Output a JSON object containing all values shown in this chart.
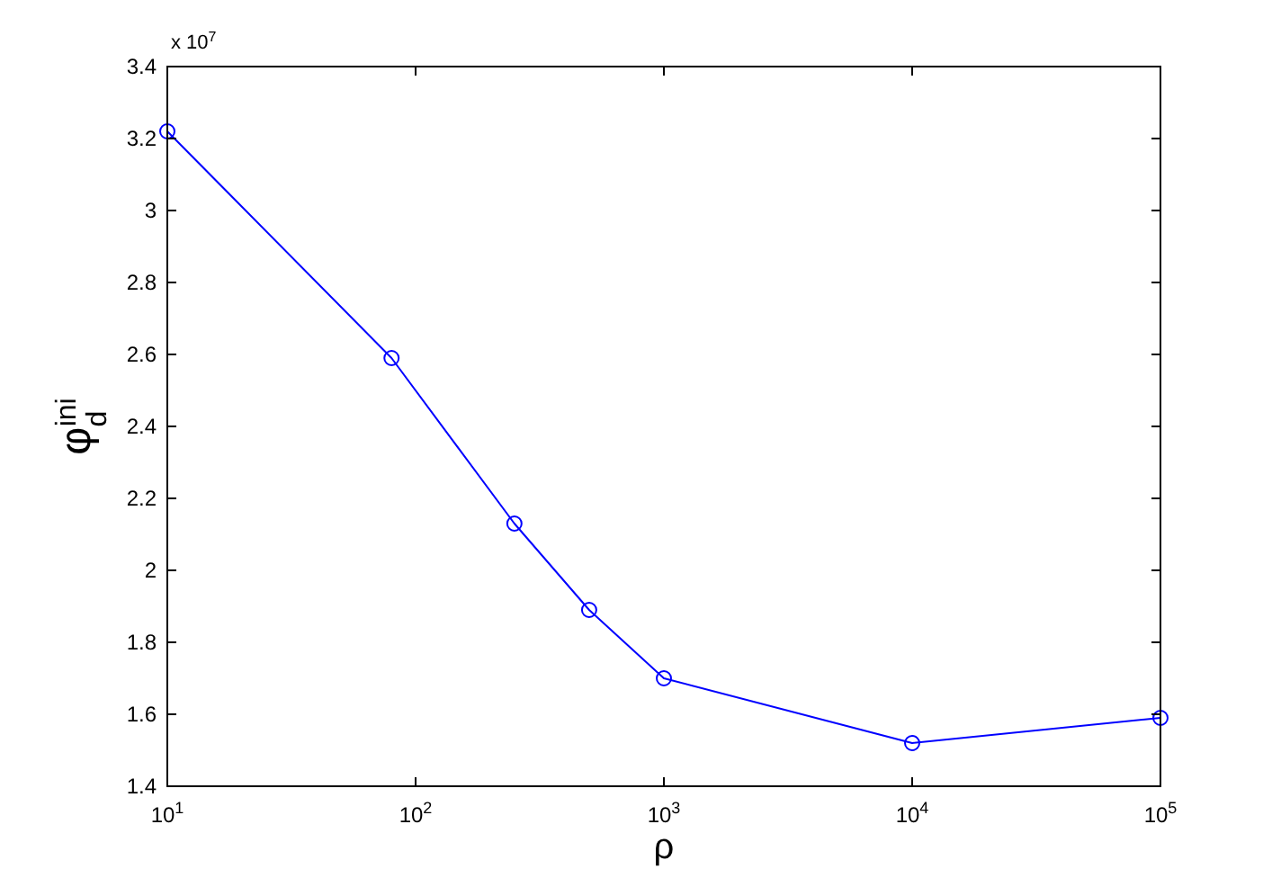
{
  "chart_data": {
    "type": "line",
    "xlabel": "ρ",
    "ylabel": "φ$_{d}$$^{ini}$",
    "log": "x",
    "marker": "circle",
    "line_style": "solid",
    "grid": false,
    "x": [
      10,
      80,
      250,
      500,
      1000,
      10000,
      100000
    ],
    "series": [
      {
        "color": "#0000ff",
        "values": [
          3.22,
          2.59,
          2.13,
          1.89,
          1.7,
          1.52,
          1.59
        ]
      }
    ],
    "xlim": [
      10,
      100000
    ],
    "xticks": [
      {
        "value": 10,
        "label": "10$^{1}$"
      },
      {
        "value": 100,
        "label": "10$^{2}$"
      },
      {
        "value": 1000,
        "label": "10$^{3}$"
      },
      {
        "value": 10000,
        "label": "10$^{4}$"
      },
      {
        "value": 100000,
        "label": "10$^{5}$"
      }
    ],
    "ylim": [
      1.4,
      3.4
    ],
    "yticks": [
      1.4,
      1.6,
      1.8,
      2,
      2.2,
      2.4,
      2.6,
      2.8,
      3,
      3.2,
      3.4
    ],
    "annotations": [
      "x 10$^{7}$"
    ]
  }
}
